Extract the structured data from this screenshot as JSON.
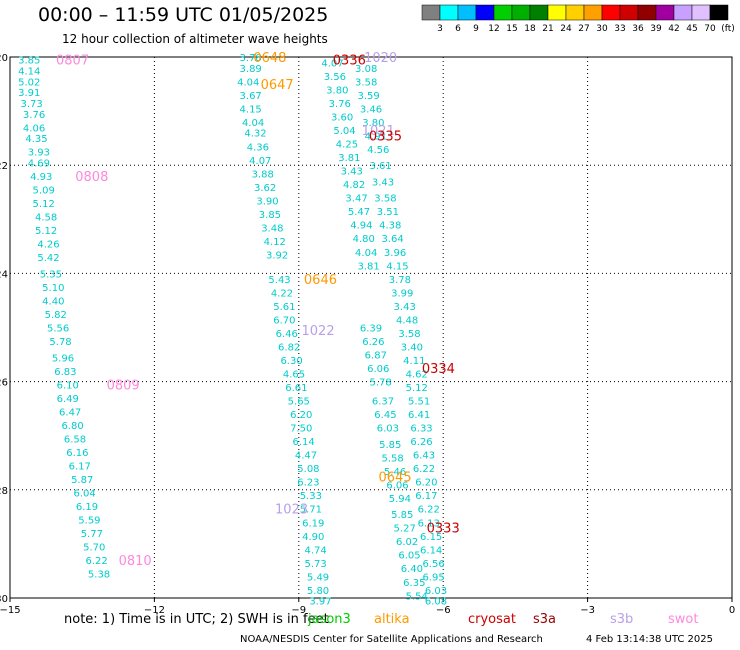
{
  "header": {
    "title": "00:00 – 11:59 UTC 01/05/2025",
    "subtitle": "12 hour collection of altimeter wave heights"
  },
  "colorbar": {
    "colors": [
      "#808080",
      "#00ffff",
      "#00bfff",
      "#0000ff",
      "#00d000",
      "#00b000",
      "#008000",
      "#ffff00",
      "#ffd000",
      "#ffa000",
      "#ff0000",
      "#d00000",
      "#900000",
      "#a000a0",
      "#c8a0ff",
      "#e0c0ff",
      "#000000"
    ],
    "labels": [
      "3",
      "6",
      "9",
      "12",
      "15",
      "18",
      "21",
      "24",
      "27",
      "30",
      "33",
      "36",
      "39",
      "42",
      "45",
      "70",
      "(ft)"
    ]
  },
  "note": {
    "text": "note:  1) Time is in UTC; 2) SWH is in feet"
  },
  "satellites": [
    {
      "name": "jason3",
      "color": "#00cc00"
    },
    {
      "name": "altika",
      "color": "#ff9900"
    },
    {
      "name": "cryosat",
      "color": "#cc0000"
    },
    {
      "name": "s3a",
      "color": "#990000"
    },
    {
      "name": "s3b",
      "color": "#b8a0e8"
    },
    {
      "name": "swot",
      "color": "#ff88dd"
    }
  ],
  "footer": {
    "credit": "NOAA/NESDIS Center for Satellite Applications and Research",
    "timestamp": "4 Feb 13:14:38 UTC 2025"
  },
  "chart_data": {
    "type": "scatter",
    "xlim": [
      -15,
      0
    ],
    "ylim": [
      -30,
      -20
    ],
    "x_ticks": [
      -15,
      -12,
      -9,
      -6,
      -3,
      0
    ],
    "y_ticks": [
      -20,
      -22,
      -24,
      -26,
      -28,
      -30
    ],
    "grid": true,
    "value_color": "#00cccc",
    "tracks": [
      {
        "values": [
          {
            "x": -14.6,
            "y": -20.05,
            "v": "3.85"
          },
          {
            "x": -14.6,
            "y": -20.25,
            "v": "4.14"
          },
          {
            "x": -14.6,
            "y": -20.45,
            "v": "5.02"
          },
          {
            "x": -14.6,
            "y": -20.65,
            "v": "3.91"
          },
          {
            "x": -14.55,
            "y": -20.85,
            "v": "3.73"
          },
          {
            "x": -14.5,
            "y": -21.05,
            "v": "3.76"
          },
          {
            "x": -14.5,
            "y": -21.3,
            "v": "4.06"
          },
          {
            "x": -14.45,
            "y": -21.5,
            "v": "4.35"
          },
          {
            "x": -14.4,
            "y": -21.75,
            "v": "3.93"
          },
          {
            "x": -14.4,
            "y": -21.95,
            "v": "4.69"
          },
          {
            "x": -14.35,
            "y": -22.2,
            "v": "4.93"
          },
          {
            "x": -14.3,
            "y": -22.45,
            "v": "5.09"
          },
          {
            "x": -14.3,
            "y": -22.7,
            "v": "5.12"
          },
          {
            "x": -14.25,
            "y": -22.95,
            "v": "4.58"
          },
          {
            "x": -14.25,
            "y": -23.2,
            "v": "5.12"
          },
          {
            "x": -14.2,
            "y": -23.45,
            "v": "4.26"
          },
          {
            "x": -14.2,
            "y": -23.7,
            "v": "5.42"
          },
          {
            "x": -14.15,
            "y": -24.0,
            "v": "5.35"
          },
          {
            "x": -14.1,
            "y": -24.25,
            "v": "5.10"
          },
          {
            "x": -14.1,
            "y": -24.5,
            "v": "4.40"
          },
          {
            "x": -14.05,
            "y": -24.75,
            "v": "5.82"
          },
          {
            "x": -14.0,
            "y": -25.0,
            "v": "5.56"
          },
          {
            "x": -13.95,
            "y": -25.25,
            "v": "5.78"
          },
          {
            "x": -13.9,
            "y": -25.55,
            "v": "5.96"
          },
          {
            "x": -13.85,
            "y": -25.8,
            "v": "6.83"
          },
          {
            "x": -13.8,
            "y": -26.05,
            "v": "6.10"
          },
          {
            "x": -13.8,
            "y": -26.3,
            "v": "6.49"
          },
          {
            "x": -13.75,
            "y": -26.55,
            "v": "6.47"
          },
          {
            "x": -13.7,
            "y": -26.8,
            "v": "6.80"
          },
          {
            "x": -13.65,
            "y": -27.05,
            "v": "6.58"
          },
          {
            "x": -13.6,
            "y": -27.3,
            "v": "6.16"
          },
          {
            "x": -13.55,
            "y": -27.55,
            "v": "6.17"
          },
          {
            "x": -13.5,
            "y": -27.8,
            "v": "5.87"
          },
          {
            "x": -13.45,
            "y": -28.05,
            "v": "6.04"
          },
          {
            "x": -13.4,
            "y": -28.3,
            "v": "6.19"
          },
          {
            "x": -13.35,
            "y": -28.55,
            "v": "5.59"
          },
          {
            "x": -13.3,
            "y": -28.8,
            "v": "5.77"
          },
          {
            "x": -13.25,
            "y": -29.05,
            "v": "5.70"
          },
          {
            "x": -13.2,
            "y": -29.3,
            "v": "6.22"
          },
          {
            "x": -13.15,
            "y": -29.55,
            "v": "5.38"
          }
        ]
      },
      {
        "values": [
          {
            "x": -10.0,
            "y": -20.0,
            "v": "3.78"
          },
          {
            "x": -10.0,
            "y": -20.2,
            "v": "3.89"
          },
          {
            "x": -10.05,
            "y": -20.45,
            "v": "4.04"
          },
          {
            "x": -10.0,
            "y": -20.7,
            "v": "3.67"
          },
          {
            "x": -10.0,
            "y": -20.95,
            "v": "4.15"
          },
          {
            "x": -9.95,
            "y": -21.2,
            "v": "4.04"
          },
          {
            "x": -9.9,
            "y": -21.4,
            "v": "4.32"
          },
          {
            "x": -9.85,
            "y": -21.65,
            "v": "4.36"
          },
          {
            "x": -9.8,
            "y": -21.9,
            "v": "4.07"
          },
          {
            "x": -9.75,
            "y": -22.15,
            "v": "3.88"
          },
          {
            "x": -9.7,
            "y": -22.4,
            "v": "3.62"
          },
          {
            "x": -9.65,
            "y": -22.65,
            "v": "3.90"
          },
          {
            "x": -9.6,
            "y": -22.9,
            "v": "3.85"
          },
          {
            "x": -9.55,
            "y": -23.15,
            "v": "3.48"
          },
          {
            "x": -9.5,
            "y": -23.4,
            "v": "4.12"
          },
          {
            "x": -9.45,
            "y": -23.65,
            "v": "3.92"
          },
          {
            "x": -9.4,
            "y": -24.1,
            "v": "5.43"
          },
          {
            "x": -9.35,
            "y": -24.35,
            "v": "4.22"
          },
          {
            "x": -9.3,
            "y": -24.6,
            "v": "5.61"
          },
          {
            "x": -9.3,
            "y": -24.85,
            "v": "6.70"
          },
          {
            "x": -9.25,
            "y": -25.1,
            "v": "6.46"
          },
          {
            "x": -9.2,
            "y": -25.35,
            "v": "6.82"
          },
          {
            "x": -9.15,
            "y": -25.6,
            "v": "6.30"
          },
          {
            "x": -9.1,
            "y": -25.85,
            "v": "4.65"
          },
          {
            "x": -9.05,
            "y": -26.1,
            "v": "6.61"
          },
          {
            "x": -9.0,
            "y": -26.35,
            "v": "5.65"
          },
          {
            "x": -8.95,
            "y": -26.6,
            "v": "6.20"
          },
          {
            "x": -8.95,
            "y": -26.85,
            "v": "7.50"
          },
          {
            "x": -8.9,
            "y": -27.1,
            "v": "6.14"
          },
          {
            "x": -8.85,
            "y": -27.35,
            "v": "4.47"
          },
          {
            "x": -8.8,
            "y": -27.6,
            "v": "5.08"
          },
          {
            "x": -8.8,
            "y": -27.85,
            "v": "6.23"
          },
          {
            "x": -8.75,
            "y": -28.1,
            "v": "5.33"
          },
          {
            "x": -8.75,
            "y": -28.35,
            "v": "5.71"
          },
          {
            "x": -8.7,
            "y": -28.6,
            "v": "6.19"
          },
          {
            "x": -8.7,
            "y": -28.85,
            "v": "4.90"
          },
          {
            "x": -8.65,
            "y": -29.1,
            "v": "4.74"
          },
          {
            "x": -8.65,
            "y": -29.35,
            "v": "5.73"
          },
          {
            "x": -8.6,
            "y": -29.6,
            "v": "5.49"
          },
          {
            "x": -8.6,
            "y": -29.85,
            "v": "5.80"
          },
          {
            "x": -8.55,
            "y": -30.05,
            "v": "3.97"
          }
        ]
      },
      {
        "values": [
          {
            "x": -8.3,
            "y": -20.1,
            "v": "4.07"
          },
          {
            "x": -8.25,
            "y": -20.35,
            "v": "3.56"
          },
          {
            "x": -8.2,
            "y": -20.6,
            "v": "3.80"
          },
          {
            "x": -8.15,
            "y": -20.85,
            "v": "3.76"
          },
          {
            "x": -8.1,
            "y": -21.1,
            "v": "3.60"
          },
          {
            "x": -8.05,
            "y": -21.35,
            "v": "5.04"
          },
          {
            "x": -8.0,
            "y": -21.6,
            "v": "4.25"
          },
          {
            "x": -7.95,
            "y": -21.85,
            "v": "3.81"
          },
          {
            "x": -7.9,
            "y": -22.1,
            "v": "3.43"
          },
          {
            "x": -7.85,
            "y": -22.35,
            "v": "4.82"
          },
          {
            "x": -7.8,
            "y": -22.6,
            "v": "3.47"
          },
          {
            "x": -7.75,
            "y": -22.85,
            "v": "5.47"
          },
          {
            "x": -7.7,
            "y": -23.1,
            "v": "4.94"
          },
          {
            "x": -7.65,
            "y": -23.35,
            "v": "4.80"
          },
          {
            "x": -7.6,
            "y": -23.6,
            "v": "4.04"
          },
          {
            "x": -7.55,
            "y": -23.85,
            "v": "3.81"
          },
          {
            "x": -7.5,
            "y": -25.0,
            "v": "6.39"
          },
          {
            "x": -7.45,
            "y": -25.25,
            "v": "6.26"
          },
          {
            "x": -7.4,
            "y": -25.5,
            "v": "6.87"
          },
          {
            "x": -7.35,
            "y": -25.75,
            "v": "6.06"
          },
          {
            "x": -7.3,
            "y": -26.0,
            "v": "5.78"
          },
          {
            "x": -7.25,
            "y": -26.35,
            "v": "6.37"
          },
          {
            "x": -7.2,
            "y": -26.6,
            "v": "6.45"
          },
          {
            "x": -7.15,
            "y": -26.85,
            "v": "6.03"
          },
          {
            "x": -7.1,
            "y": -27.15,
            "v": "5.85"
          },
          {
            "x": -7.05,
            "y": -27.4,
            "v": "5.58"
          },
          {
            "x": -7.0,
            "y": -27.65,
            "v": "5.46"
          },
          {
            "x": -6.95,
            "y": -27.9,
            "v": "6.06"
          },
          {
            "x": -6.9,
            "y": -28.15,
            "v": "5.94"
          },
          {
            "x": -6.85,
            "y": -28.45,
            "v": "5.85"
          },
          {
            "x": -6.8,
            "y": -28.7,
            "v": "5.27"
          },
          {
            "x": -6.75,
            "y": -28.95,
            "v": "6.02"
          },
          {
            "x": -6.7,
            "y": -29.2,
            "v": "6.05"
          },
          {
            "x": -6.65,
            "y": -29.45,
            "v": "6.40"
          },
          {
            "x": -6.6,
            "y": -29.7,
            "v": "6.35"
          },
          {
            "x": -6.55,
            "y": -29.95,
            "v": "5.54"
          }
        ]
      },
      {
        "values": [
          {
            "x": -7.6,
            "y": -20.2,
            "v": "3.08"
          },
          {
            "x": -7.6,
            "y": -20.45,
            "v": "3.58"
          },
          {
            "x": -7.55,
            "y": -20.7,
            "v": "3.59"
          },
          {
            "x": -7.5,
            "y": -20.95,
            "v": "3.46"
          },
          {
            "x": -7.45,
            "y": -21.2,
            "v": "3.80"
          },
          {
            "x": -7.4,
            "y": -21.45,
            "v": "4.91"
          },
          {
            "x": -7.35,
            "y": -21.7,
            "v": "4.56"
          },
          {
            "x": -7.3,
            "y": -22.0,
            "v": "3.61"
          },
          {
            "x": -7.25,
            "y": -22.3,
            "v": "3.43"
          },
          {
            "x": -7.2,
            "y": -22.6,
            "v": "3.58"
          },
          {
            "x": -7.15,
            "y": -22.85,
            "v": "3.51"
          },
          {
            "x": -7.1,
            "y": -23.1,
            "v": "4.38"
          },
          {
            "x": -7.05,
            "y": -23.35,
            "v": "3.64"
          },
          {
            "x": -7.0,
            "y": -23.6,
            "v": "3.96"
          },
          {
            "x": -6.95,
            "y": -23.85,
            "v": "4.15"
          },
          {
            "x": -6.9,
            "y": -24.1,
            "v": "3.78"
          },
          {
            "x": -6.85,
            "y": -24.35,
            "v": "3.99"
          },
          {
            "x": -6.8,
            "y": -24.6,
            "v": "3.43"
          },
          {
            "x": -6.75,
            "y": -24.85,
            "v": "4.48"
          },
          {
            "x": -6.7,
            "y": -25.1,
            "v": "3.58"
          },
          {
            "x": -6.65,
            "y": -25.35,
            "v": "3.40"
          },
          {
            "x": -6.6,
            "y": -25.6,
            "v": "4.11"
          },
          {
            "x": -6.55,
            "y": -25.85,
            "v": "4.62"
          },
          {
            "x": -6.55,
            "y": -26.1,
            "v": "5.12"
          },
          {
            "x": -6.5,
            "y": -26.35,
            "v": "5.51"
          },
          {
            "x": -6.5,
            "y": -26.6,
            "v": "6.41"
          },
          {
            "x": -6.45,
            "y": -26.85,
            "v": "6.33"
          },
          {
            "x": -6.45,
            "y": -27.1,
            "v": "6.26"
          },
          {
            "x": -6.4,
            "y": -27.35,
            "v": "6.43"
          },
          {
            "x": -6.4,
            "y": -27.6,
            "v": "6.22"
          },
          {
            "x": -6.35,
            "y": -27.85,
            "v": "6.20"
          },
          {
            "x": -6.35,
            "y": -28.1,
            "v": "6.17"
          },
          {
            "x": -6.3,
            "y": -28.35,
            "v": "6.22"
          },
          {
            "x": -6.3,
            "y": -28.6,
            "v": "6.13"
          },
          {
            "x": -6.25,
            "y": -28.85,
            "v": "6.15"
          },
          {
            "x": -6.25,
            "y": -29.1,
            "v": "6.14"
          },
          {
            "x": -6.2,
            "y": -29.35,
            "v": "6.56"
          },
          {
            "x": -6.2,
            "y": -29.6,
            "v": "6.95"
          },
          {
            "x": -6.15,
            "y": -29.85,
            "v": "6.03"
          },
          {
            "x": -6.15,
            "y": -30.05,
            "v": "6.08"
          }
        ]
      }
    ],
    "time_labels": [
      {
        "x": -13.7,
        "y": -20.05,
        "text": "0807",
        "sat": "swot"
      },
      {
        "x": -9.6,
        "y": -20.0,
        "text": "0648",
        "sat": "altika"
      },
      {
        "x": -9.45,
        "y": -20.5,
        "text": "0647",
        "sat": "altika"
      },
      {
        "x": -7.95,
        "y": -20.05,
        "text": "0336",
        "sat": "cryosat"
      },
      {
        "x": -7.3,
        "y": -20.0,
        "text": "1020",
        "sat": "s3b"
      },
      {
        "x": -7.35,
        "y": -21.35,
        "text": "1021",
        "sat": "s3b"
      },
      {
        "x": -7.2,
        "y": -21.45,
        "text": "0335",
        "sat": "cryosat"
      },
      {
        "x": -13.3,
        "y": -22.2,
        "text": "0808",
        "sat": "swot"
      },
      {
        "x": -8.55,
        "y": -24.1,
        "text": "0646",
        "sat": "altika"
      },
      {
        "x": -8.6,
        "y": -25.05,
        "text": "1022",
        "sat": "s3b"
      },
      {
        "x": -6.1,
        "y": -25.75,
        "text": "0334",
        "sat": "cryosat"
      },
      {
        "x": -12.65,
        "y": -26.05,
        "text": "0809",
        "sat": "swot"
      },
      {
        "x": -7.0,
        "y": -27.75,
        "text": "0645",
        "sat": "altika"
      },
      {
        "x": -9.15,
        "y": -28.35,
        "text": "1023",
        "sat": "s3b"
      },
      {
        "x": -6.0,
        "y": -28.7,
        "text": "0333",
        "sat": "cryosat"
      },
      {
        "x": -12.4,
        "y": -29.3,
        "text": "0810",
        "sat": "swot"
      }
    ]
  }
}
